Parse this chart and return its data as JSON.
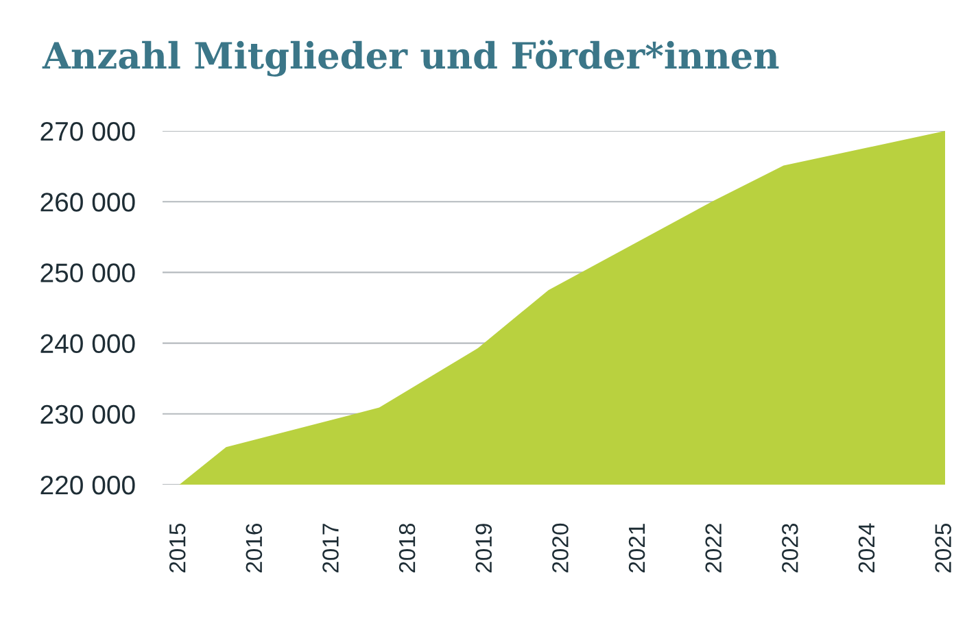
{
  "chart_data": {
    "type": "area",
    "title": "Anzahl Mitglieder und Förder*innen",
    "x": [
      2015,
      2015.61,
      2017.61,
      2018.9,
      2019.82,
      2021.97,
      2022.89,
      2025
    ],
    "series": [
      {
        "color": "#b9d13f",
        "values": [
          220000,
          225300,
          230900,
          239300,
          247500,
          260100,
          265100,
          270000
        ]
      }
    ],
    "xlim": [
      2014.78,
      2025
    ],
    "xticks": [
      2015,
      2016,
      2017,
      2018,
      2019,
      2020,
      2021,
      2022,
      2023,
      2024,
      2025
    ],
    "ylim": [
      220000,
      270000
    ],
    "yticks": [
      {
        "value": 220000,
        "label": "220 000"
      },
      {
        "value": 230000,
        "label": "230 000"
      },
      {
        "value": 240000,
        "label": "240 000"
      },
      {
        "value": 250000,
        "label": "250 000"
      },
      {
        "value": 260000,
        "label": "260 000"
      },
      {
        "value": 270000,
        "label": "270 000"
      }
    ],
    "grid": "y",
    "legend": false
  }
}
